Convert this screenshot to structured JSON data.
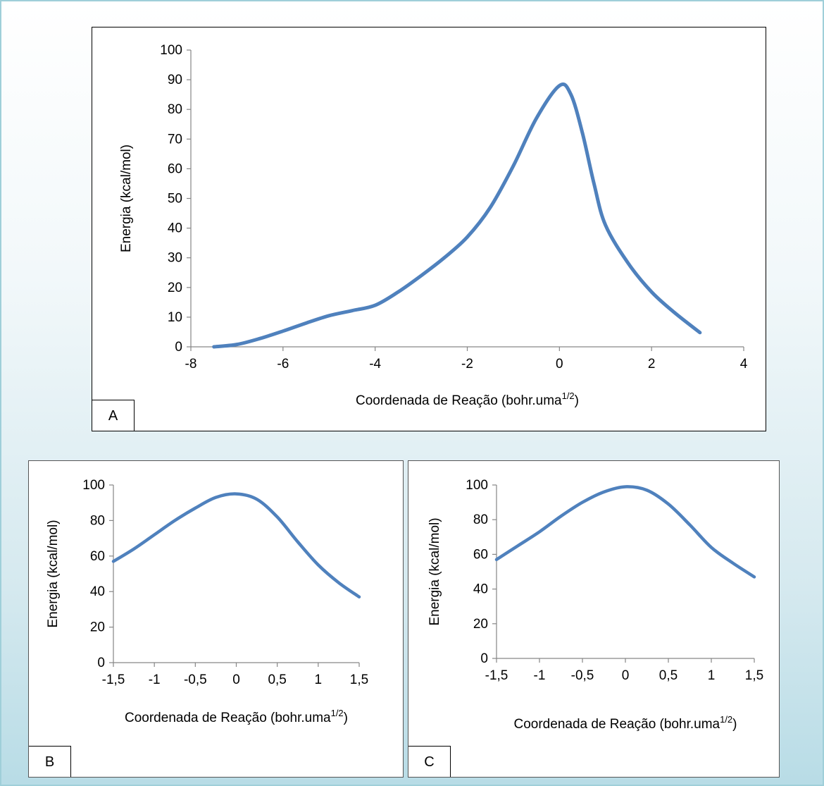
{
  "colors": {
    "line": "#4f81bd",
    "axis": "#868686",
    "panel_border": "#000000",
    "frame_border": "#9fcfd9"
  },
  "panels": [
    {
      "tag": "A"
    },
    {
      "tag": "B"
    },
    {
      "tag": "C"
    }
  ],
  "chart_data": [
    {
      "type": "line",
      "panel": "A",
      "xlabel": "Coordenada de Reação (bohr.uma",
      "xlabel_sup": "1/2",
      "xlabel_end": ")",
      "ylabel": "Energia (kcal/mol)",
      "xlim": [
        -8,
        4
      ],
      "ylim": [
        0,
        100
      ],
      "xticks": [
        -8,
        -6,
        -4,
        -2,
        0,
        2,
        4
      ],
      "yticks": [
        0,
        10,
        20,
        30,
        40,
        50,
        60,
        70,
        80,
        90,
        100
      ],
      "xtick_labels": [
        "-8",
        "-6",
        "-4",
        "-2",
        "0",
        "2",
        "4"
      ],
      "ytick_labels": [
        "0",
        "10",
        "20",
        "30",
        "40",
        "50",
        "60",
        "70",
        "80",
        "90",
        "100"
      ],
      "grid": false,
      "series": [
        {
          "x": [
            -7.5,
            -7.0,
            -6.5,
            -6.0,
            -5.5,
            -5.0,
            -4.5,
            -4.0,
            -3.5,
            -3.0,
            -2.5,
            -2.0,
            -1.5,
            -1.0,
            -0.5,
            0.0,
            0.25,
            0.5,
            0.75,
            1.0,
            1.5,
            2.0,
            2.5,
            3.05
          ],
          "y": [
            0,
            0.8,
            2.8,
            5.3,
            8.0,
            10.5,
            12.2,
            14.0,
            18.5,
            24.0,
            30.0,
            37.0,
            47.0,
            61.0,
            77.0,
            88.0,
            85.0,
            72.0,
            55.0,
            41.0,
            28.0,
            18.5,
            11.5,
            4.8
          ]
        }
      ]
    },
    {
      "type": "line",
      "panel": "B",
      "xlabel": "Coordenada de Reação (bohr.uma",
      "xlabel_sup": "1/2",
      "xlabel_end": ")",
      "ylabel": "Energia (kcal/mol)",
      "xlim": [
        -1.5,
        1.5
      ],
      "ylim": [
        0,
        100
      ],
      "xticks": [
        -1.5,
        -1.0,
        -0.5,
        0.0,
        0.5,
        1.0,
        1.5
      ],
      "yticks": [
        0,
        20,
        40,
        60,
        80,
        100
      ],
      "xtick_labels": [
        "-1,5",
        "-1",
        "-0,5",
        "0",
        "0,5",
        "1",
        "1,5"
      ],
      "ytick_labels": [
        "0",
        "20",
        "40",
        "60",
        "80",
        "100"
      ],
      "grid": false,
      "series": [
        {
          "x": [
            -1.5,
            -1.25,
            -1.0,
            -0.75,
            -0.5,
            -0.25,
            0.0,
            0.25,
            0.5,
            0.75,
            1.0,
            1.25,
            1.5
          ],
          "y": [
            57,
            64,
            72,
            80,
            87,
            93,
            95,
            92,
            82,
            68,
            55,
            45,
            37
          ]
        }
      ]
    },
    {
      "type": "line",
      "panel": "C",
      "xlabel": "Coordenada de Reação (bohr.uma",
      "xlabel_sup": "1/2",
      "xlabel_end": ")",
      "ylabel": "Energia (kcal/mol)",
      "xlim": [
        -1.5,
        1.5
      ],
      "ylim": [
        0,
        100
      ],
      "xticks": [
        -1.5,
        -1.0,
        -0.5,
        0.0,
        0.5,
        1.0,
        1.5
      ],
      "yticks": [
        0,
        20,
        40,
        60,
        80,
        100
      ],
      "xtick_labels": [
        "-1,5",
        "-1",
        "-0,5",
        "0",
        "0,5",
        "1",
        "1,5"
      ],
      "ytick_labels": [
        "0",
        "20",
        "40",
        "60",
        "80",
        "100"
      ],
      "grid": false,
      "series": [
        {
          "x": [
            -1.5,
            -1.25,
            -1.0,
            -0.75,
            -0.5,
            -0.25,
            0.0,
            0.25,
            0.5,
            0.75,
            1.0,
            1.25,
            1.5
          ],
          "y": [
            57,
            65,
            73,
            82,
            90,
            96,
            99,
            97,
            89,
            77,
            64,
            55,
            47
          ]
        }
      ]
    }
  ]
}
